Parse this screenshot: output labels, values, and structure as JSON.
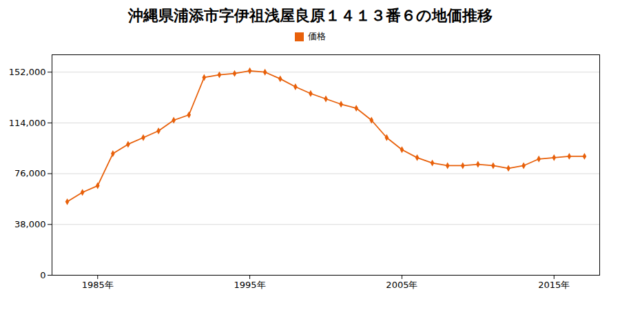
{
  "chart_data": {
    "type": "line",
    "title": "沖縄県浦添市字伊祖浅屋良原１４１３番６の地価推移",
    "x": [
      1983,
      1984,
      1985,
      1986,
      1987,
      1988,
      1989,
      1990,
      1991,
      1992,
      1993,
      1994,
      1995,
      1996,
      1997,
      1998,
      1999,
      2000,
      2001,
      2002,
      2003,
      2004,
      2005,
      2006,
      2007,
      2008,
      2009,
      2010,
      2011,
      2012,
      2013,
      2014,
      2015,
      2016,
      2017
    ],
    "series": [
      {
        "name": "価格",
        "color": "#E8600A",
        "marker": "diamond",
        "values": [
          55000,
          62000,
          67000,
          91000,
          98000,
          103000,
          108000,
          116000,
          120000,
          148000,
          150000,
          151000,
          153000,
          152000,
          147000,
          141000,
          136000,
          132000,
          128000,
          125000,
          116000,
          103000,
          94000,
          88000,
          84000,
          82000,
          82000,
          83000,
          82000,
          80000,
          82000,
          87000,
          88000,
          89000,
          89000
        ]
      }
    ],
    "xlim": [
      1982,
      2018
    ],
    "xticks": [
      {
        "value": 1985,
        "label": "1985年"
      },
      {
        "value": 1995,
        "label": "1995年"
      },
      {
        "value": 2005,
        "label": "2005年"
      },
      {
        "value": 2015,
        "label": "2015年"
      }
    ],
    "ylim": [
      0,
      165000
    ],
    "yticks": [
      0,
      {
        "value": 38000,
        "label": "38,000"
      },
      {
        "value": 76000,
        "label": "76,000"
      },
      {
        "value": 114000,
        "label": "114,000"
      },
      {
        "value": 152000,
        "label": "152,000"
      }
    ],
    "grid": true,
    "legend": "top"
  }
}
